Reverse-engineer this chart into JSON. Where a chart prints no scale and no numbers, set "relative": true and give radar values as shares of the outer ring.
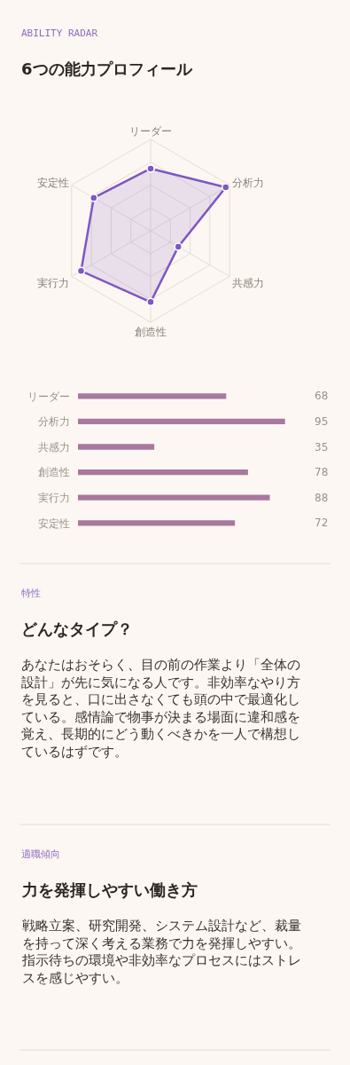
{
  "chart_data": [
    {
      "type": "radar",
      "subtitle": "ABILITY RADAR",
      "title": "6つの能力プロフィール",
      "relative": true,
      "categories": [
        "リーダー",
        "分析力",
        "共感力",
        "創造性",
        "実行力",
        "安定性"
      ],
      "series": [
        {
          "color": "#7e57c2",
          "values": [
            0.68,
            0.95,
            0.35,
            0.78,
            0.88,
            0.72
          ]
        }
      ],
      "marker": "circle",
      "grid": true
    },
    {
      "type": "bar",
      "orientation": "horizontal",
      "categories": [
        "リーダー",
        "分析力",
        "共感力",
        "創造性",
        "実行力",
        "安定性"
      ],
      "series": [
        {
          "color": "#a8789f",
          "values": [
            68,
            95,
            35,
            78,
            88,
            72
          ]
        }
      ],
      "data_labels": true,
      "tick_labels": "y",
      "grid": false
    },
    {
      "type": "other",
      "subtitle": "特性",
      "title": "どんなタイプ？",
      "annotations": [
        "あなたはおそらく、目の前の作業より「全体の設計」が先に気になる人です。非効率なやり方を見ると、口に出さなくても頭の中で最適化している。感情論で物事が決まる場面に違和感を覚え、長期的にどう動くべきかを一人で構想しているはずです。"
      ]
    },
    {
      "type": "other",
      "subtitle": "適職傾向",
      "title": "力を発揮しやすい働き方",
      "annotations": [
        "戦略立案、研究開発、システム設計など、裁量を持って深く考える業務で力を発揮しやすい。指示待ちの環境や非効率なプロセスにはストレスを感じやすい。"
      ]
    }
  ]
}
